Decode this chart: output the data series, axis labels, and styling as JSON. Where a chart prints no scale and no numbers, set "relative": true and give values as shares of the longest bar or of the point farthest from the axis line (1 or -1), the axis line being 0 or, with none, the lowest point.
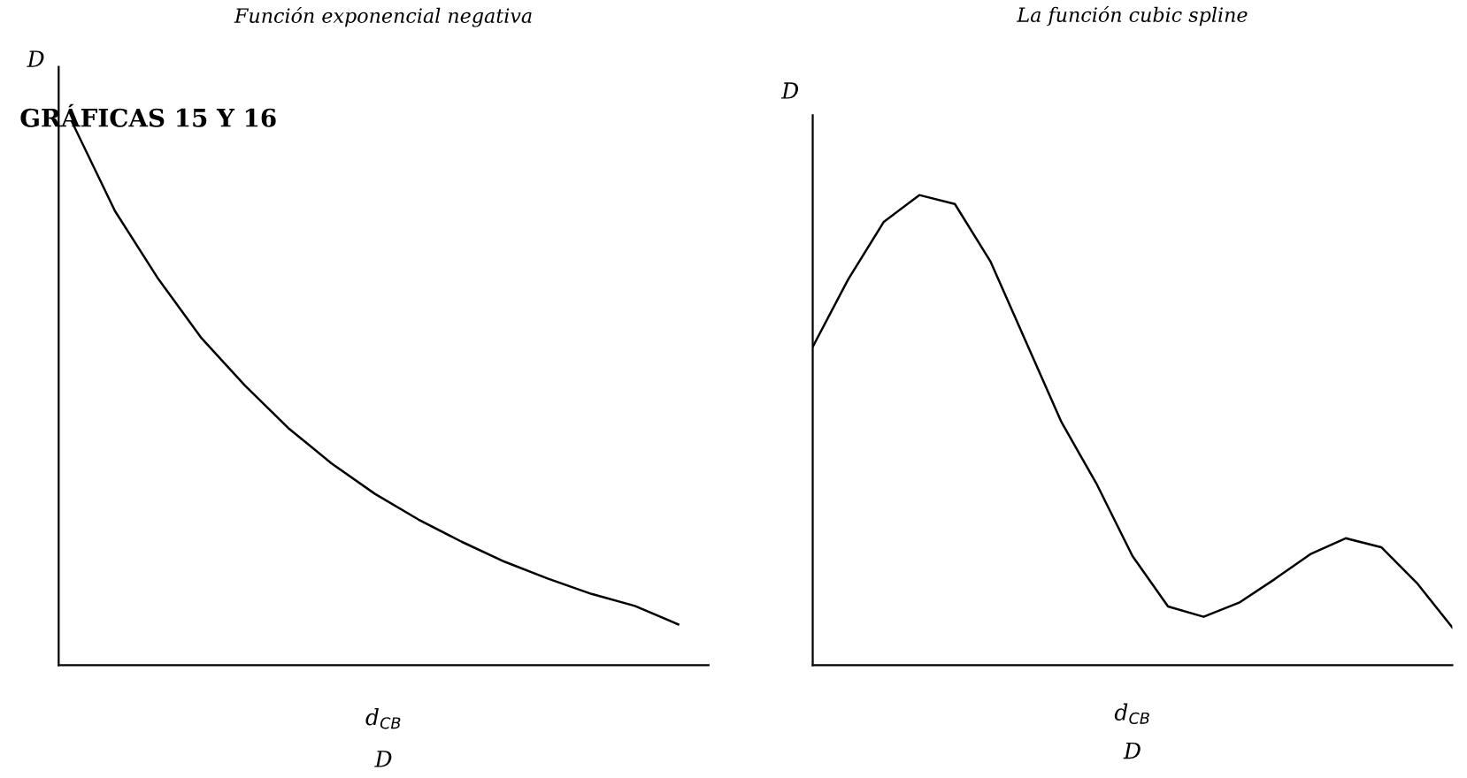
{
  "chart_data": [
    {
      "type": "line",
      "title": "Función exponencial negativa",
      "ylabel": "D",
      "xlabel": "d$_{CB}$",
      "relative": true,
      "categories": [
        null,
        null,
        null,
        null,
        null,
        null,
        null,
        null,
        null,
        null,
        null,
        null,
        null,
        null,
        null
      ],
      "series": [
        {
          "color": "#000000",
          "values": [
            1,
            0.835,
            0.71,
            0.601,
            0.514,
            0.436,
            0.371,
            0.315,
            0.268,
            0.227,
            0.19,
            0.159,
            0.131,
            0.109,
            0.075
          ]
        }
      ],
      "annotations": [
        "D",
        "GRÁFICAS 15 Y 16"
      ]
    },
    {
      "type": "line",
      "title": "La función cubic spline",
      "ylabel": "D",
      "xlabel": "d$_{CB}$",
      "relative": true,
      "categories": [
        null,
        null,
        null,
        null,
        null,
        null,
        null,
        null,
        null,
        null,
        null,
        null,
        null,
        null,
        null,
        null,
        null,
        null,
        null
      ],
      "series": [
        {
          "color": "#000000",
          "values": [
            0.677,
            0.821,
            0.943,
            1,
            0.981,
            0.859,
            0.688,
            0.517,
            0.384,
            0.232,
            0.125,
            0.103,
            0.133,
            0.183,
            0.236,
            0.27,
            0.251,
            0.175,
            0.08
          ]
        }
      ],
      "annotations": [
        "D"
      ]
    }
  ]
}
